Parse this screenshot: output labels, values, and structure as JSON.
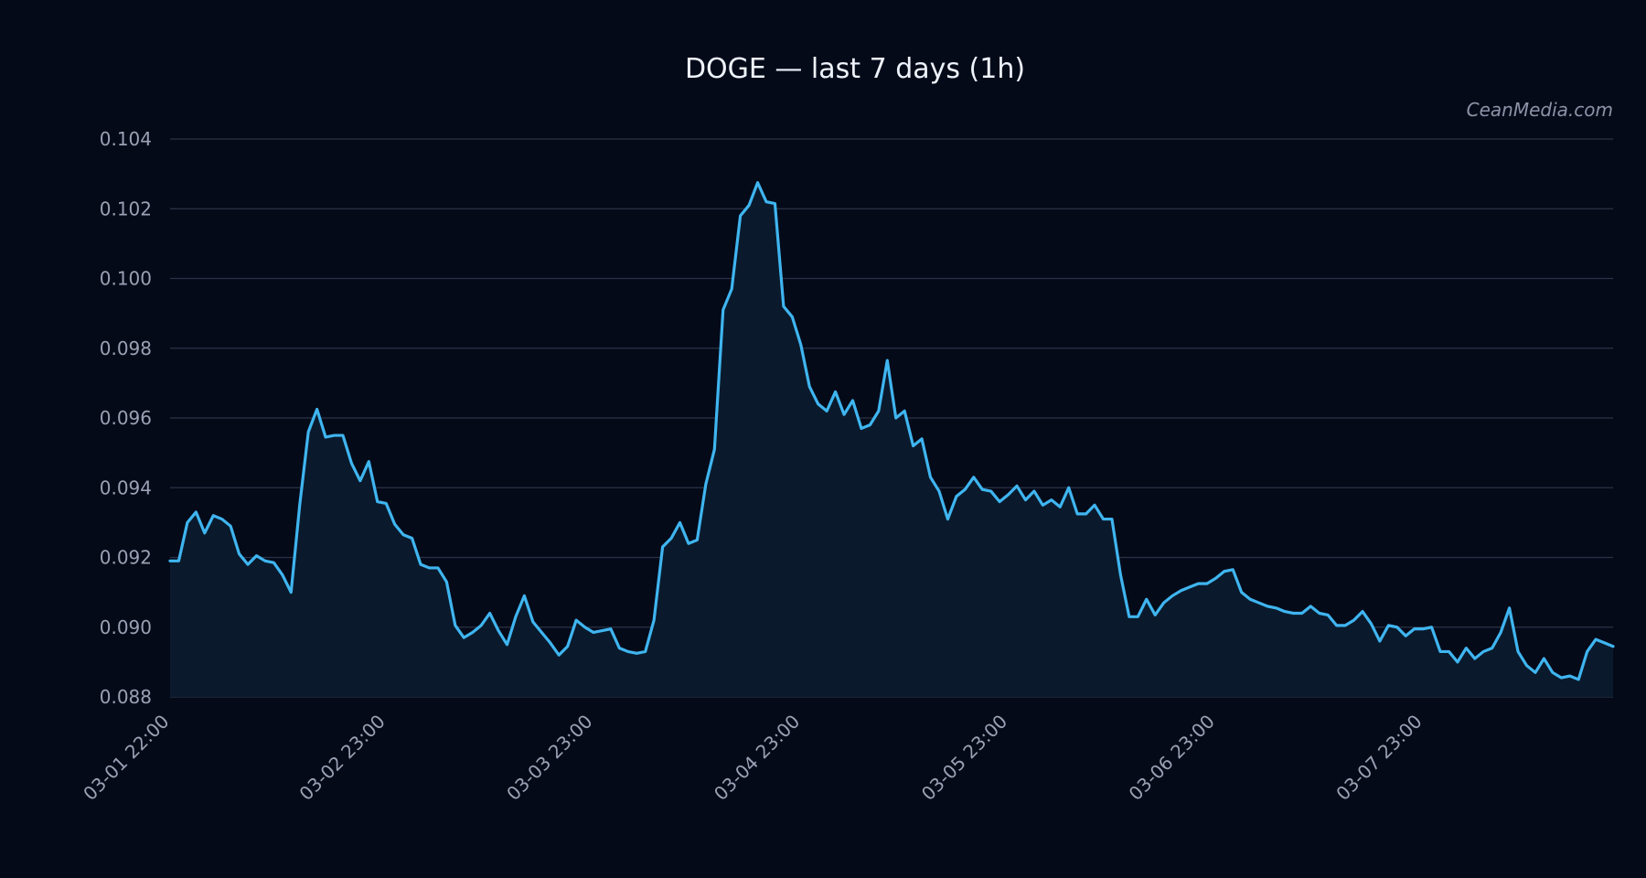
{
  "chart_data": {
    "type": "area",
    "title": "DOGE — last 7 days (1h)",
    "watermark": "CeanMedia.com",
    "xlabel": "",
    "ylabel": "",
    "ylim": [
      0.088,
      0.104
    ],
    "y_ticks": [
      "0.104",
      "0.102",
      "0.100",
      "0.098",
      "0.096",
      "0.094",
      "0.092",
      "0.090",
      "0.088"
    ],
    "x_tick_labels": [
      {
        "label": "03-01 22:00",
        "index": 0
      },
      {
        "label": "03-02 23:00",
        "index": 25
      },
      {
        "label": "03-03 23:00",
        "index": 49
      },
      {
        "label": "03-04 23:00",
        "index": 73
      },
      {
        "label": "03-05 23:00",
        "index": 97
      },
      {
        "label": "03-06 23:00",
        "index": 121
      },
      {
        "label": "03-07 23:00",
        "index": 145
      }
    ],
    "grid": true,
    "colors": {
      "background": "#050a19",
      "line": "#3fb5f0",
      "fill": "#0a1a2c",
      "grid": "#2a3345",
      "text": "#9aa1b3",
      "title": "#eef2fa"
    },
    "series": [
      {
        "values": [
          0.0919,
          0.0919,
          0.093,
          0.0933,
          0.0927,
          0.0932,
          0.0931,
          0.0929,
          0.0921,
          0.0918,
          0.09205,
          0.0919,
          0.09185,
          0.0915,
          0.091,
          0.0935,
          0.0956,
          0.09625,
          0.09545,
          0.0955,
          0.0955,
          0.0947,
          0.0942,
          0.09475,
          0.0936,
          0.09355,
          0.09295,
          0.09265,
          0.09255,
          0.0918,
          0.0917,
          0.0917,
          0.0913,
          0.09005,
          0.0897,
          0.08985,
          0.09005,
          0.0904,
          0.0899,
          0.0895,
          0.0903,
          0.0909,
          0.09015,
          0.08985,
          0.08955,
          0.0892,
          0.08945,
          0.0902,
          0.09,
          0.08985,
          0.0899,
          0.08995,
          0.0894,
          0.0893,
          0.08925,
          0.0893,
          0.0902,
          0.0923,
          0.09255,
          0.093,
          0.0924,
          0.0925,
          0.0941,
          0.0951,
          0.0991,
          0.0997,
          0.1018,
          0.1021,
          0.10275,
          0.1022,
          0.10215,
          0.0992,
          0.0989,
          0.0981,
          0.0969,
          0.0964,
          0.0962,
          0.09675,
          0.0961,
          0.0965,
          0.0957,
          0.0958,
          0.0962,
          0.09765,
          0.096,
          0.0962,
          0.0952,
          0.0954,
          0.0943,
          0.0939,
          0.0931,
          0.09375,
          0.09395,
          0.0943,
          0.09395,
          0.0939,
          0.0936,
          0.0938,
          0.09405,
          0.09365,
          0.0939,
          0.0935,
          0.09365,
          0.09345,
          0.094,
          0.09325,
          0.09325,
          0.0935,
          0.0931,
          0.0931,
          0.0915,
          0.0903,
          0.0903,
          0.0908,
          0.09035,
          0.0907,
          0.0909,
          0.09105,
          0.09115,
          0.09125,
          0.09125,
          0.0914,
          0.0916,
          0.09165,
          0.091,
          0.0908,
          0.0907,
          0.0906,
          0.09055,
          0.09045,
          0.0904,
          0.0904,
          0.0906,
          0.0904,
          0.09035,
          0.09005,
          0.09005,
          0.0902,
          0.09045,
          0.0901,
          0.0896,
          0.09005,
          0.09,
          0.08975,
          0.08995,
          0.08995,
          0.09,
          0.0893,
          0.0893,
          0.089,
          0.0894,
          0.0891,
          0.0893,
          0.0894,
          0.08985,
          0.09055,
          0.0893,
          0.0889,
          0.0887,
          0.0891,
          0.0887,
          0.08855,
          0.0886,
          0.0885,
          0.0893,
          0.08965,
          0.08955,
          0.08945
        ]
      }
    ]
  }
}
